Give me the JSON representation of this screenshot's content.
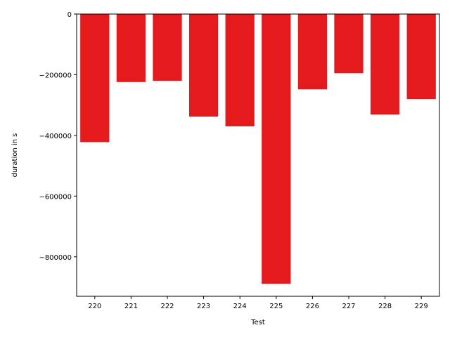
{
  "chart_data": {
    "type": "bar",
    "title": "",
    "xlabel": "Test",
    "ylabel": "duration in s",
    "categories": [
      "220",
      "221",
      "222",
      "223",
      "224",
      "225",
      "226",
      "227",
      "228",
      "229"
    ],
    "values": [
      -422000,
      -224000,
      -220000,
      -338000,
      -370000,
      -889000,
      -248000,
      -195000,
      -331000,
      -280000
    ],
    "ylim": [
      -930000,
      0
    ],
    "yticks": [
      0,
      -200000,
      -400000,
      -600000,
      -800000
    ],
    "ytick_labels": [
      "0",
      "−200000",
      "−400000",
      "−600000",
      "−800000"
    ],
    "bar_color": "#e41a1c",
    "grid": false,
    "legend": "none"
  }
}
